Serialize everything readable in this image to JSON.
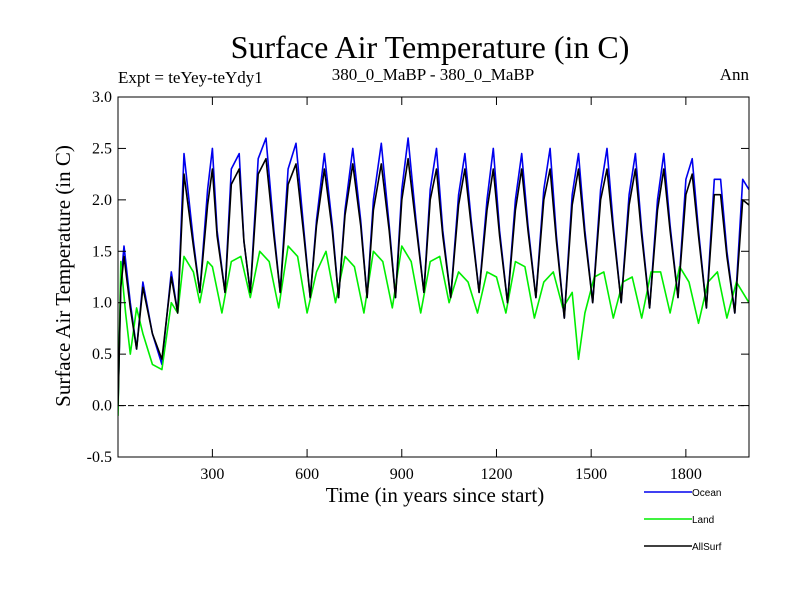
{
  "chart_data": {
    "type": "line",
    "title": "Surface Air Temperature (in C)",
    "subtitle_left": "Expt = teYey-teYdy1",
    "subtitle_center": "380_0_MaBP - 380_0_MaBP",
    "subtitle_right": "Ann",
    "xlabel": "Time (in years since start)",
    "ylabel": "Surface Air Temperature (in C)",
    "xlim": [
      1,
      2000
    ],
    "ylim": [
      -0.5,
      3.0
    ],
    "xticks": [
      300,
      600,
      900,
      1200,
      1500,
      1800
    ],
    "yticks": [
      -0.5,
      0.0,
      0.5,
      1.0,
      1.5,
      2.0,
      2.5,
      3.0
    ],
    "ytick_labels": [
      "-0.5",
      "0.0",
      "0.5",
      "1.0",
      "1.5",
      "2.0",
      "2.5",
      "3.0"
    ],
    "zero_line": 0.0,
    "series": [
      {
        "name": "Ocean",
        "color": "#0000ee",
        "x": [
          1,
          10,
          20,
          40,
          60,
          80,
          110,
          140,
          170,
          190,
          210,
          240,
          260,
          285,
          300,
          315,
          340,
          360,
          385,
          400,
          420,
          445,
          470,
          495,
          515,
          540,
          565,
          590,
          610,
          630,
          655,
          680,
          700,
          720,
          745,
          770,
          790,
          810,
          835,
          860,
          880,
          900,
          920,
          945,
          970,
          990,
          1010,
          1030,
          1055,
          1080,
          1100,
          1120,
          1145,
          1170,
          1190,
          1210,
          1235,
          1260,
          1280,
          1300,
          1325,
          1350,
          1370,
          1390,
          1415,
          1440,
          1460,
          1480,
          1505,
          1530,
          1550,
          1570,
          1595,
          1620,
          1640,
          1660,
          1685,
          1710,
          1730,
          1750,
          1775,
          1800,
          1820,
          1840,
          1865,
          1890,
          1910,
          1930,
          1955,
          1980,
          2000
        ],
        "y": [
          0.0,
          1.2,
          1.55,
          1.0,
          0.55,
          1.2,
          0.7,
          0.4,
          1.3,
          0.9,
          2.45,
          1.6,
          1.1,
          2.1,
          2.5,
          1.7,
          1.1,
          2.3,
          2.45,
          1.6,
          1.1,
          2.4,
          2.6,
          1.7,
          1.1,
          2.3,
          2.55,
          1.7,
          1.05,
          1.8,
          2.45,
          1.75,
          1.05,
          1.9,
          2.5,
          1.8,
          1.05,
          2.0,
          2.55,
          1.75,
          1.05,
          2.1,
          2.6,
          1.8,
          1.1,
          2.1,
          2.5,
          1.7,
          1.05,
          2.05,
          2.45,
          1.8,
          1.1,
          2.0,
          2.5,
          1.7,
          1.0,
          2.0,
          2.45,
          1.75,
          1.05,
          2.1,
          2.5,
          1.65,
          0.85,
          2.05,
          2.45,
          1.7,
          1.0,
          2.1,
          2.5,
          1.75,
          1.0,
          2.05,
          2.45,
          1.7,
          0.95,
          2.0,
          2.45,
          1.75,
          1.05,
          2.2,
          2.4,
          1.7,
          0.95,
          2.2,
          2.2,
          1.5,
          0.9,
          2.2,
          2.1
        ]
      },
      {
        "name": "Land",
        "color": "#00ee00",
        "x": [
          1,
          10,
          25,
          40,
          60,
          80,
          110,
          140,
          170,
          190,
          210,
          240,
          260,
          285,
          300,
          330,
          360,
          390,
          420,
          450,
          480,
          510,
          540,
          570,
          600,
          630,
          660,
          690,
          720,
          750,
          780,
          810,
          840,
          870,
          900,
          930,
          960,
          990,
          1020,
          1050,
          1080,
          1110,
          1140,
          1170,
          1200,
          1230,
          1260,
          1290,
          1320,
          1350,
          1380,
          1410,
          1440,
          1460,
          1480,
          1510,
          1540,
          1570,
          1600,
          1630,
          1660,
          1690,
          1720,
          1750,
          1780,
          1810,
          1840,
          1870,
          1900,
          1930,
          1960,
          2000
        ],
        "y": [
          -0.1,
          1.4,
          0.9,
          0.5,
          0.95,
          0.7,
          0.4,
          0.35,
          1.0,
          0.9,
          1.45,
          1.3,
          1.0,
          1.4,
          1.35,
          0.9,
          1.4,
          1.45,
          1.05,
          1.5,
          1.4,
          0.95,
          1.55,
          1.45,
          0.9,
          1.3,
          1.5,
          1.0,
          1.45,
          1.35,
          0.9,
          1.5,
          1.4,
          0.95,
          1.55,
          1.4,
          0.9,
          1.4,
          1.45,
          1.0,
          1.3,
          1.2,
          0.9,
          1.3,
          1.25,
          0.9,
          1.4,
          1.35,
          0.85,
          1.2,
          1.3,
          0.95,
          1.1,
          0.45,
          0.9,
          1.25,
          1.3,
          0.85,
          1.2,
          1.25,
          0.85,
          1.3,
          1.3,
          0.9,
          1.35,
          1.2,
          0.8,
          1.2,
          1.3,
          0.85,
          1.2,
          1.0
        ]
      },
      {
        "name": "AllSurf",
        "color": "#000000",
        "x": [
          1,
          10,
          20,
          40,
          60,
          80,
          110,
          140,
          170,
          190,
          210,
          240,
          260,
          285,
          300,
          315,
          340,
          360,
          385,
          400,
          420,
          445,
          470,
          495,
          515,
          540,
          565,
          590,
          610,
          630,
          655,
          680,
          700,
          720,
          745,
          770,
          790,
          810,
          835,
          860,
          880,
          900,
          920,
          945,
          970,
          990,
          1010,
          1030,
          1055,
          1080,
          1100,
          1120,
          1145,
          1170,
          1190,
          1210,
          1235,
          1260,
          1280,
          1300,
          1325,
          1350,
          1370,
          1390,
          1415,
          1440,
          1460,
          1480,
          1505,
          1530,
          1550,
          1570,
          1595,
          1620,
          1640,
          1660,
          1685,
          1710,
          1730,
          1750,
          1775,
          1800,
          1820,
          1840,
          1865,
          1890,
          1910,
          1930,
          1955,
          1980,
          2000
        ],
        "y": [
          0.0,
          1.15,
          1.45,
          0.95,
          0.55,
          1.15,
          0.7,
          0.45,
          1.25,
          0.9,
          2.25,
          1.55,
          1.1,
          1.95,
          2.3,
          1.65,
          1.1,
          2.15,
          2.3,
          1.6,
          1.1,
          2.25,
          2.4,
          1.65,
          1.1,
          2.15,
          2.35,
          1.65,
          1.05,
          1.75,
          2.3,
          1.7,
          1.05,
          1.85,
          2.35,
          1.75,
          1.05,
          1.9,
          2.35,
          1.7,
          1.05,
          2.0,
          2.4,
          1.75,
          1.1,
          2.0,
          2.3,
          1.65,
          1.05,
          1.95,
          2.3,
          1.75,
          1.1,
          1.9,
          2.3,
          1.65,
          1.0,
          1.9,
          2.3,
          1.7,
          1.05,
          2.0,
          2.3,
          1.6,
          0.85,
          1.95,
          2.3,
          1.65,
          1.0,
          2.0,
          2.3,
          1.7,
          1.0,
          1.95,
          2.3,
          1.65,
          0.95,
          1.9,
          2.3,
          1.7,
          1.05,
          2.05,
          2.25,
          1.65,
          0.95,
          2.05,
          2.05,
          1.45,
          0.9,
          2.0,
          1.95
        ]
      }
    ]
  }
}
